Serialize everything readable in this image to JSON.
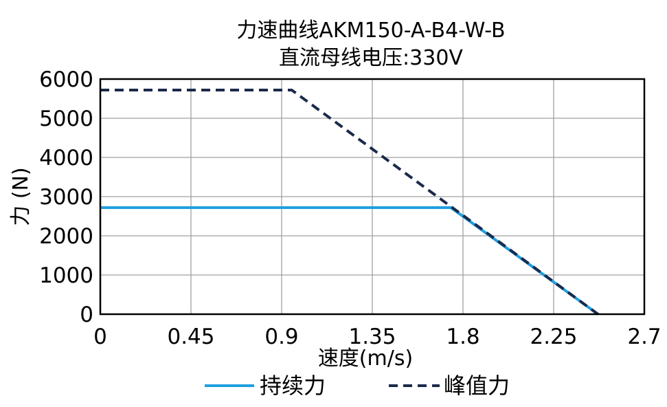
{
  "chart_data": {
    "type": "line",
    "title": "力速曲线AKM150-A-B4-W-B",
    "subtitle": "直流母线电压:330V",
    "xlabel": "速度(m/s)",
    "ylabel": "力 (N)",
    "xlim": [
      0,
      2.7
    ],
    "ylim": [
      0,
      6000
    ],
    "xticks": [
      0,
      0.45,
      0.9,
      1.35,
      1.8,
      2.25,
      2.7
    ],
    "xtick_labels": [
      "0",
      "0.45",
      "0.9",
      "1.35",
      "1.8",
      "2.25",
      "2.7"
    ],
    "yticks": [
      0,
      1000,
      2000,
      3000,
      4000,
      5000,
      6000
    ],
    "ytick_labels": [
      "0",
      "1000",
      "2000",
      "3000",
      "4000",
      "5000",
      "6000"
    ],
    "grid": true,
    "legend_position": "bottom",
    "series": [
      {
        "name": "持续力",
        "color": "#1f9fe0",
        "style": "solid",
        "x": [
          0,
          1.74,
          2.47
        ],
        "y": [
          2720,
          2720,
          0
        ]
      },
      {
        "name": "峰值力",
        "color": "#1b2a4a",
        "style": "dashed",
        "x": [
          0,
          0.95,
          2.47
        ],
        "y": [
          5720,
          5720,
          0
        ]
      }
    ]
  }
}
